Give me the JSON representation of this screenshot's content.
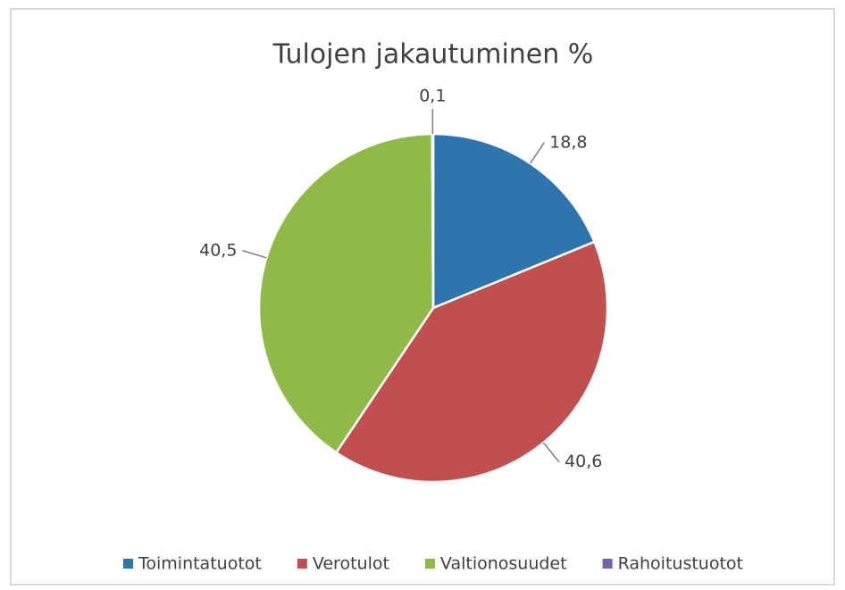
{
  "chart_data": {
    "type": "pie",
    "title": "Tulojen jakautuminen %",
    "categories": [
      "Toimintatuotot",
      "Verotulot",
      "Valtionosuudet",
      "Rahoitustuotot"
    ],
    "values": [
      18.8,
      40.6,
      40.5,
      0.1
    ],
    "value_labels": [
      "18,8",
      "40,6",
      "40,5",
      "0,1"
    ],
    "colors": [
      "#2e75b0",
      "#c0504d",
      "#8fba4a",
      "#7565a8"
    ],
    "legend": "bottom"
  }
}
